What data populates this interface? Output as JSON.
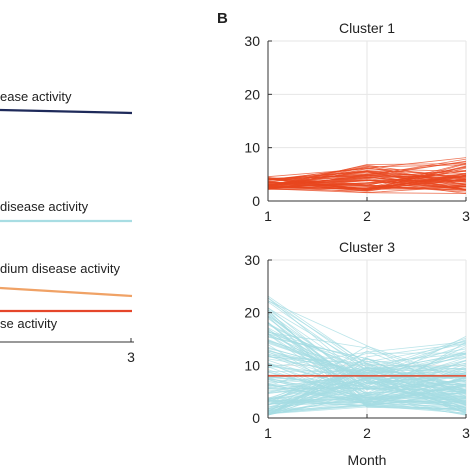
{
  "panel_b_label": "B",
  "left_fragment": {
    "labels": [
      "ease activity",
      "disease activity",
      "dium disease activity",
      "se activity"
    ],
    "x_tick_label": "3"
  },
  "colors": {
    "high": "#1e2a5a",
    "low": "#a8dde3",
    "medium": "#f0a266",
    "lowest": "#e5462a",
    "cluster1": "#e8471f",
    "cluster3_lines": "#a6dce3",
    "cluster3_mean": "#e5462a"
  },
  "chart_data": [
    {
      "type": "line",
      "title": "",
      "note": "partially cropped panel: fragments of four trajectory lines ending at month 3",
      "x_ticks": [
        "3"
      ],
      "series": [
        {
          "name": "ease activity",
          "x": [
            2.35,
            3
          ],
          "y": [
            4.75,
            4.7
          ],
          "color": "#1e2a5a"
        },
        {
          "name": "disease activity",
          "x": [
            2.35,
            3
          ],
          "y": [
            2.4,
            2.4
          ],
          "color": "#a8dde3"
        },
        {
          "name": "dium disease activity",
          "x": [
            2.35,
            3
          ],
          "y": [
            1.3,
            1.05
          ],
          "color": "#f0a266"
        },
        {
          "name": "se activity",
          "x": [
            2.35,
            3
          ],
          "y": [
            0.8,
            0.8
          ],
          "color": "#e5462a"
        }
      ]
    },
    {
      "type": "line",
      "title": "Cluster 1",
      "x_ticks": [
        1,
        2,
        3
      ],
      "y_ticks": [
        0,
        10,
        20,
        30
      ],
      "xlim": [
        1,
        3
      ],
      "ylim": [
        0,
        30
      ],
      "color": "#e8471f",
      "n_trajectories": 70,
      "band_month1": [
        2.2,
        4.6
      ],
      "band_month2": [
        1.4,
        9.0
      ],
      "band_month3": [
        1.2,
        9.8
      ]
    },
    {
      "type": "line",
      "title": "Cluster 3",
      "x_ticks": [
        1,
        2,
        3
      ],
      "y_ticks": [
        0,
        10,
        20,
        30
      ],
      "xlim": [
        1,
        3
      ],
      "ylim": [
        0,
        30
      ],
      "xlabel": "Month",
      "color": "#a6dce3",
      "n_trajectories": 160,
      "band_month1": [
        0.5,
        23.5
      ],
      "band_month2": [
        2.0,
        15.0
      ],
      "band_month3": [
        0.5,
        17.0
      ],
      "mean_line": {
        "x": [
          1,
          3
        ],
        "y": [
          8,
          8
        ],
        "color": "#e5462a"
      }
    }
  ]
}
